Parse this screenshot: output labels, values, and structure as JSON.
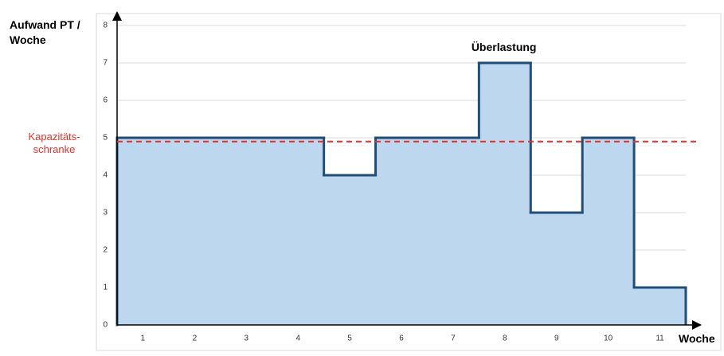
{
  "chart_data": {
    "type": "step-area",
    "y_label": "Aufwand PT / Woche",
    "x_label": "Woche",
    "categories": [
      "1",
      "2",
      "3",
      "4",
      "5",
      "6",
      "7",
      "8",
      "9",
      "10",
      "11"
    ],
    "values": [
      5,
      5,
      5,
      5,
      4,
      5,
      5,
      7,
      3,
      5,
      1
    ],
    "color": "#bdd7ee",
    "line_color": "#1f4e79",
    "ylim": [
      0,
      8
    ],
    "yticks": [
      0,
      1,
      2,
      3,
      4,
      5,
      6,
      7,
      8
    ],
    "grid": true,
    "reference_line": {
      "label": "Kapazitäts-schranke",
      "value": 4.9,
      "color": "#e8302a"
    },
    "annotation": {
      "text": "Überlastung",
      "category": "8"
    }
  }
}
